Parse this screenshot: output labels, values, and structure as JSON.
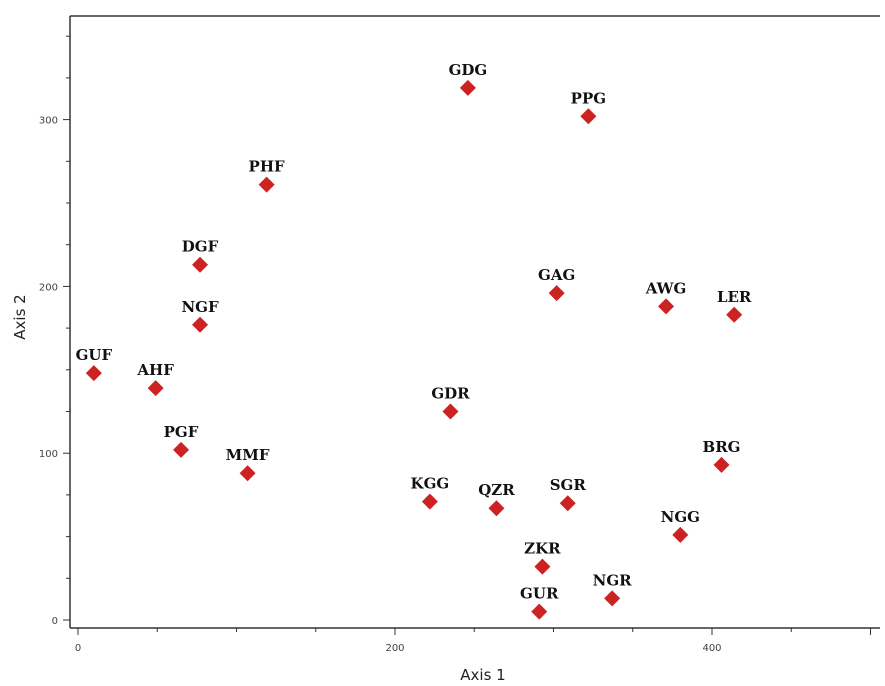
{
  "chart_data": {
    "type": "scatter",
    "xlabel": "Axis 1",
    "ylabel": "Axis 2",
    "xlim": [
      0,
      505
    ],
    "ylim": [
      -5,
      363
    ],
    "xticks": [
      0,
      200,
      400
    ],
    "yticks": [
      0,
      100,
      200,
      300
    ],
    "grid": false,
    "marker_color": "#cc2222",
    "points": [
      {
        "label": "GDG",
        "x": 246,
        "y": 319
      },
      {
        "label": "PPG",
        "x": 322,
        "y": 302
      },
      {
        "label": "PHF",
        "x": 119,
        "y": 261
      },
      {
        "label": "DGF",
        "x": 77,
        "y": 213
      },
      {
        "label": "GAG",
        "x": 302,
        "y": 196
      },
      {
        "label": "AWG",
        "x": 371,
        "y": 188
      },
      {
        "label": "LER",
        "x": 414,
        "y": 183
      },
      {
        "label": "NGF",
        "x": 77,
        "y": 177
      },
      {
        "label": "GUF",
        "x": 10,
        "y": 148
      },
      {
        "label": "AHF",
        "x": 49,
        "y": 139
      },
      {
        "label": "GDR",
        "x": 235,
        "y": 125
      },
      {
        "label": "PGF",
        "x": 65,
        "y": 102
      },
      {
        "label": "BRG",
        "x": 406,
        "y": 93
      },
      {
        "label": "MMF",
        "x": 107,
        "y": 88
      },
      {
        "label": "KGG",
        "x": 222,
        "y": 71
      },
      {
        "label": "SGR",
        "x": 309,
        "y": 70
      },
      {
        "label": "QZR",
        "x": 264,
        "y": 67
      },
      {
        "label": "NGG",
        "x": 380,
        "y": 51
      },
      {
        "label": "ZKR",
        "x": 293,
        "y": 32
      },
      {
        "label": "NGR",
        "x": 337,
        "y": 13
      },
      {
        "label": "GUR",
        "x": 291,
        "y": 5
      }
    ]
  }
}
